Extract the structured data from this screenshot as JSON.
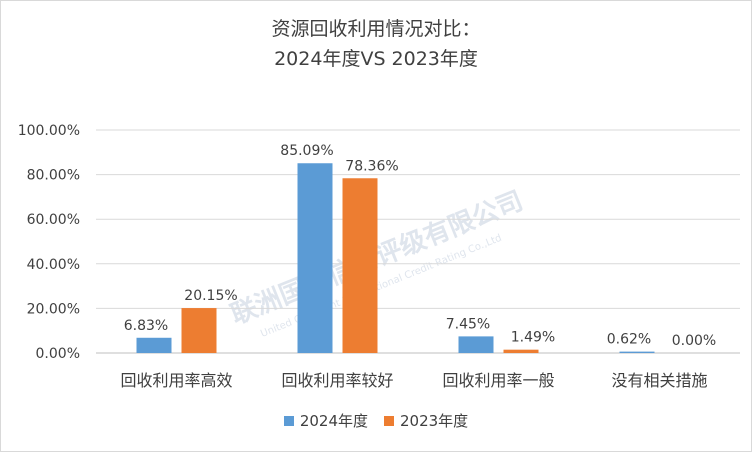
{
  "chart_data": {
    "type": "bar",
    "title_line1": "资源回收利用情况对比：",
    "title_line2": "2024年度VS 2023年度",
    "categories": [
      "回收利用率高效",
      "回收利用率较好",
      "回收利用率一般",
      "没有相关措施"
    ],
    "series": [
      {
        "name": "2024年度",
        "color": "#5b9bd5",
        "values": [
          6.83,
          85.09,
          7.45,
          0.62
        ],
        "labels": [
          "6.83%",
          "85.09%",
          "7.45%",
          "0.62%"
        ]
      },
      {
        "name": "2023年度",
        "color": "#ed7d31",
        "values": [
          20.15,
          78.36,
          1.49,
          0.0
        ],
        "labels": [
          "20.15%",
          "78.36%",
          "1.49%",
          "0.00%"
        ]
      }
    ],
    "ylim": [
      0,
      100
    ],
    "yticks": [
      0,
      20,
      40,
      60,
      80,
      100
    ],
    "ytick_labels": [
      "0.00%",
      "20.00%",
      "40.00%",
      "60.00%",
      "80.00%",
      "100.00%"
    ],
    "grid": true,
    "legend_position": "bottom"
  },
  "watermark": {
    "line1": "联洲国际信用评级有限公司",
    "line2": "United Continent International Credit Rating Co.,Ltd"
  }
}
